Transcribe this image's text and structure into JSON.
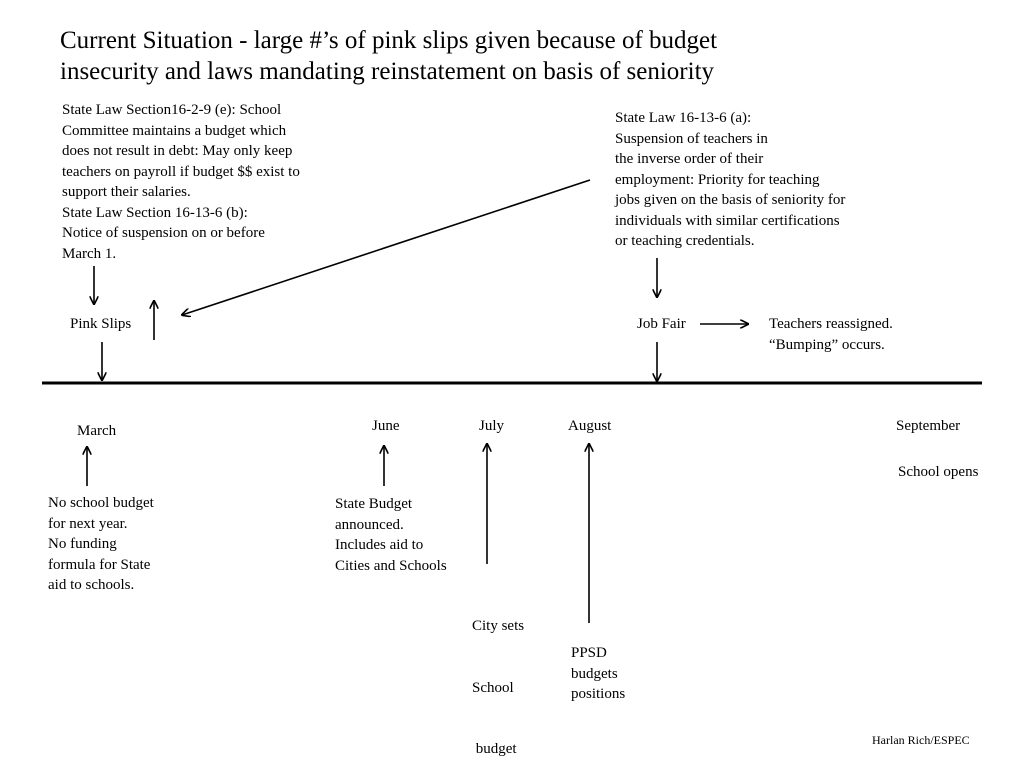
{
  "title": {
    "line1": "Current Situation - large #’s of pink slips given because of budget",
    "line2": "insecurity and laws mandating reinstatement on basis of seniority"
  },
  "laws": {
    "left": {
      "lines": [
        "State Law Section16-2-9 (e): School",
        "Committee maintains a budget which",
        "does not result in debt: May only keep",
        "teachers on payroll if budget $$ exist to",
        "support their salaries.",
        "State Law Section 16-13-6 (b):",
        "Notice of suspension on or before",
        "March 1."
      ]
    },
    "right": {
      "lines": [
        "State Law 16-13-6 (a):",
        "Suspension of teachers in",
        "the inverse order of their",
        "employment: Priority for teaching",
        "jobs given on the basis of seniority for",
        "individuals with similar certifications",
        "or teaching credentials."
      ]
    }
  },
  "events": {
    "pink_slips": "Pink Slips",
    "job_fair": "Job Fair",
    "reassigned": {
      "lines": [
        "Teachers reassigned.",
        "“Bumping” occurs."
      ]
    }
  },
  "months": {
    "march": "March",
    "june": "June",
    "july": "July",
    "august": "August",
    "september": "September"
  },
  "notes": {
    "march": {
      "lines": [
        "No school budget",
        "for next year.",
        "No funding",
        "formula for State",
        "aid to schools."
      ]
    },
    "june": {
      "lines": [
        "State Budget",
        "announced.",
        "Includes aid to",
        "Cities and Schools"
      ]
    },
    "july": {
      "lines": [
        "City sets",
        "School",
        " budget"
      ]
    },
    "august": {
      "lines": [
        "PPSD",
        "budgets",
        "positions"
      ]
    },
    "september": "School opens"
  },
  "credit": "Harlan Rich/ESPEC"
}
